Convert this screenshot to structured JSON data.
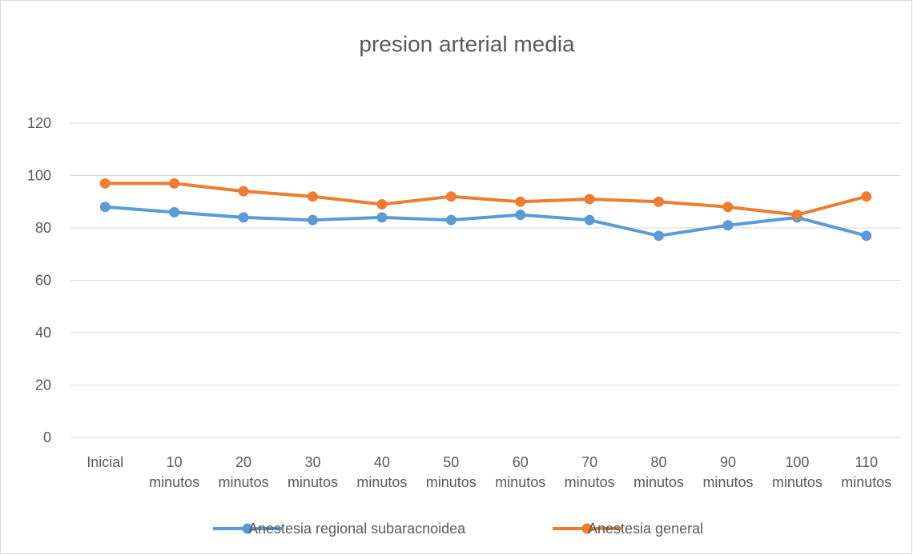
{
  "chart_data": {
    "type": "line",
    "title": "presion arterial media",
    "categories": [
      "Inicial",
      "10 minutos",
      "20 minutos",
      "30 minutos",
      "40 minutos",
      "50 minutos",
      "60 minutos",
      "70 minutos",
      "80 minutos",
      "90 minutos",
      "100 minutos",
      "110 minutos"
    ],
    "series": [
      {
        "name": "Anestesia regional subaracnoidea",
        "color": "#5b9bd5",
        "values": [
          88,
          86,
          84,
          83,
          84,
          83,
          85,
          83,
          77,
          81,
          84,
          77
        ]
      },
      {
        "name": "Anestesia general",
        "color": "#ed7d31",
        "values": [
          97,
          97,
          94,
          92,
          89,
          92,
          90,
          91,
          90,
          88,
          85,
          92
        ]
      }
    ],
    "ylim": [
      0,
      120
    ],
    "yticks": [
      0,
      20,
      40,
      60,
      80,
      100,
      120
    ],
    "grid": true,
    "legend": "bottom"
  }
}
